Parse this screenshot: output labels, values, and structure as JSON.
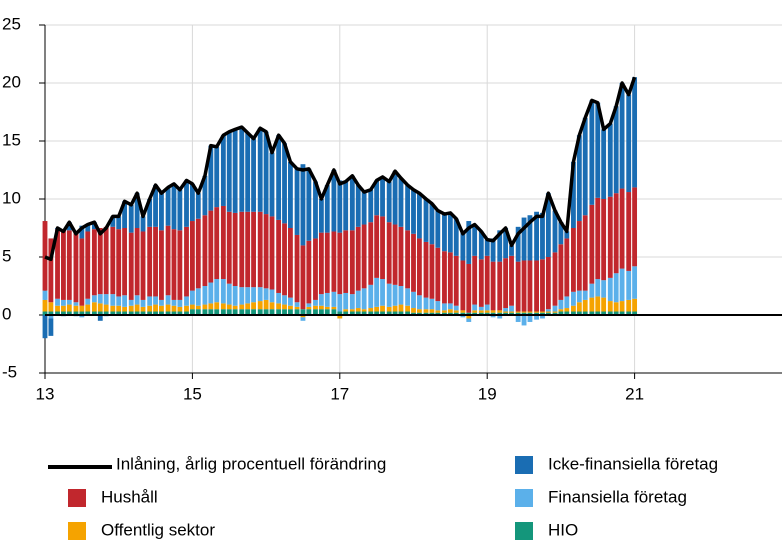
{
  "chart_data": {
    "type": "bar",
    "stacked": true,
    "x": [
      13.0,
      13.08,
      13.17,
      13.25,
      13.33,
      13.42,
      13.5,
      13.58,
      13.67,
      13.75,
      13.83,
      13.92,
      14.0,
      14.08,
      14.17,
      14.25,
      14.33,
      14.42,
      14.5,
      14.58,
      14.67,
      14.75,
      14.83,
      14.92,
      15.0,
      15.08,
      15.17,
      15.25,
      15.33,
      15.42,
      15.5,
      15.58,
      15.67,
      15.75,
      15.83,
      15.92,
      16.0,
      16.08,
      16.17,
      16.25,
      16.33,
      16.42,
      16.5,
      16.58,
      16.67,
      16.75,
      16.83,
      16.92,
      17.0,
      17.08,
      17.17,
      17.25,
      17.33,
      17.42,
      17.5,
      17.58,
      17.67,
      17.75,
      17.83,
      17.92,
      18.0,
      18.08,
      18.17,
      18.25,
      18.33,
      18.42,
      18.5,
      18.58,
      18.67,
      18.75,
      18.83,
      18.92,
      19.0,
      19.08,
      19.17,
      19.25,
      19.33,
      19.42,
      19.5,
      19.58,
      19.67,
      19.75,
      19.83,
      19.92,
      20.0,
      20.08,
      20.17,
      20.25,
      20.33,
      20.42,
      20.5,
      20.58,
      20.67,
      20.75,
      20.83,
      20.92,
      21.0
    ],
    "series": [
      {
        "name": "Inlåning, årlig procentuell förändring",
        "type": "line",
        "color": "#000000",
        "values": [
          5.0,
          4.8,
          7.5,
          7.2,
          8.0,
          7.0,
          7.5,
          7.8,
          8.0,
          7.0,
          7.5,
          8.5,
          8.5,
          9.8,
          9.5,
          10.5,
          8.5,
          10.0,
          11.2,
          10.5,
          11.0,
          11.3,
          10.8,
          11.6,
          11.3,
          10.5,
          12.0,
          14.6,
          14.5,
          15.5,
          15.8,
          16.0,
          16.2,
          15.7,
          15.2,
          16.1,
          15.8,
          14.0,
          15.5,
          14.8,
          13.2,
          12.6,
          12.5,
          12.6,
          11.5,
          10.0,
          11.2,
          12.5,
          11.3,
          11.5,
          12.0,
          11.2,
          10.6,
          10.8,
          11.6,
          11.9,
          11.5,
          12.4,
          11.8,
          11.2,
          10.8,
          10.5,
          10.0,
          9.6,
          9.0,
          8.7,
          8.8,
          8.3,
          7.0,
          7.5,
          7.8,
          7.2,
          6.5,
          6.4,
          7.0,
          7.5,
          6.0,
          7.0,
          7.5,
          8.0,
          8.5,
          8.5,
          10.5,
          9.0,
          8.0,
          7.2,
          13.2,
          15.5,
          17.0,
          18.5,
          18.3,
          16.0,
          16.5,
          18.0,
          20.0,
          19.0,
          20.5
        ]
      },
      {
        "name": "Icke-finansiella företag",
        "type": "bar",
        "color": "#1a6db3",
        "values": [
          -2.0,
          -1.5,
          0.1,
          -0.1,
          0.7,
          -0.1,
          1.1,
          0.6,
          0.6,
          -0.5,
          -0.1,
          0.9,
          1.1,
          2.3,
          2.4,
          3.0,
          1.3,
          2.4,
          3.6,
          3.2,
          3.3,
          3.9,
          3.5,
          4.0,
          3.2,
          2.2,
          3.4,
          5.6,
          5.2,
          6.1,
          6.9,
          7.2,
          7.3,
          6.8,
          6.3,
          7.2,
          7.1,
          5.5,
          7.3,
          6.9,
          5.7,
          5.7,
          7.0,
          6.2,
          4.9,
          2.9,
          4.1,
          5.3,
          4.5,
          4.2,
          4.7,
          3.6,
          2.8,
          2.8,
          3.0,
          3.4,
          3.5,
          4.6,
          4.2,
          3.9,
          3.8,
          3.9,
          3.7,
          3.5,
          3.2,
          3.2,
          3.4,
          3.2,
          2.5,
          3.7,
          2.7,
          2.4,
          1.4,
          2.0,
          2.7,
          2.6,
          0.9,
          3.0,
          3.7,
          3.9,
          4.2,
          4.0,
          5.5,
          3.6,
          1.9,
          0.6,
          5.7,
          7.4,
          8.4,
          9.0,
          8.2,
          6.0,
          6.3,
          7.5,
          9.1,
          8.4,
          9.5
        ]
      },
      {
        "name": "Hushåll",
        "type": "bar",
        "color": "#c1272d",
        "values": [
          6.0,
          5.5,
          6.0,
          6.0,
          6.0,
          6.0,
          5.8,
          5.8,
          5.7,
          5.7,
          5.8,
          5.8,
          5.8,
          5.8,
          5.8,
          5.8,
          5.9,
          6.0,
          6.0,
          6.0,
          6.0,
          6.1,
          6.0,
          6.0,
          6.0,
          6.0,
          6.1,
          6.2,
          6.2,
          6.3,
          6.2,
          6.3,
          6.5,
          6.5,
          6.5,
          6.5,
          6.4,
          6.3,
          6.3,
          6.2,
          6.0,
          5.8,
          5.5,
          5.4,
          5.3,
          5.3,
          5.2,
          5.2,
          5.3,
          5.4,
          5.5,
          5.5,
          5.5,
          5.4,
          5.4,
          5.4,
          5.3,
          5.2,
          5.1,
          5.0,
          5.0,
          4.9,
          4.8,
          4.7,
          4.6,
          4.5,
          4.4,
          4.3,
          4.3,
          4.2,
          4.2,
          4.1,
          4.2,
          4.2,
          4.2,
          4.3,
          4.3,
          4.3,
          4.4,
          4.4,
          4.4,
          4.5,
          4.5,
          4.6,
          4.8,
          5.0,
          5.5,
          6.0,
          6.5,
          6.8,
          7.0,
          7.0,
          7.0,
          6.9,
          6.9,
          6.8,
          6.8
        ]
      },
      {
        "name": "Finansiella företag",
        "type": "bar",
        "color": "#5bb0ea",
        "values": [
          0.8,
          -0.3,
          0.6,
          0.5,
          0.4,
          0.3,
          -0.2,
          0.5,
          0.6,
          0.8,
          0.9,
          1.0,
          0.8,
          1.0,
          0.5,
          0.8,
          0.6,
          0.8,
          0.7,
          0.5,
          0.8,
          0.5,
          0.6,
          0.8,
          1.2,
          1.5,
          1.6,
          1.8,
          2.0,
          2.1,
          1.8,
          1.7,
          1.5,
          1.4,
          1.3,
          1.2,
          1.0,
          1.1,
          0.9,
          0.8,
          0.7,
          0.4,
          -0.3,
          0.3,
          0.5,
          1.0,
          1.2,
          1.3,
          1.5,
          1.4,
          1.3,
          1.5,
          1.8,
          2.0,
          2.5,
          2.3,
          2.0,
          1.8,
          1.6,
          1.5,
          1.4,
          1.2,
          1.0,
          0.9,
          0.8,
          0.6,
          0.5,
          0.4,
          -0.2,
          -0.3,
          0.5,
          0.3,
          0.5,
          -0.2,
          -0.3,
          0.3,
          0.5,
          -0.6,
          -0.9,
          -0.6,
          -0.4,
          -0.3,
          0.2,
          0.5,
          0.8,
          1.0,
          1.2,
          1.0,
          0.8,
          1.2,
          1.5,
          1.5,
          2.0,
          2.5,
          2.8,
          2.5,
          2.8
        ]
      },
      {
        "name": "Offentlig sektor",
        "type": "bar",
        "color": "#f5a300",
        "values": [
          1.0,
          0.8,
          0.5,
          0.5,
          0.6,
          0.5,
          0.5,
          0.6,
          0.8,
          0.7,
          0.6,
          0.5,
          0.5,
          0.4,
          0.5,
          0.6,
          0.4,
          0.5,
          0.6,
          0.5,
          0.6,
          0.5,
          0.4,
          0.5,
          0.4,
          0.3,
          0.4,
          0.5,
          0.6,
          0.5,
          0.4,
          0.3,
          0.4,
          0.5,
          0.6,
          0.7,
          0.8,
          0.6,
          0.5,
          0.4,
          0.3,
          0.2,
          -0.2,
          0.2,
          0.3,
          0.3,
          0.2,
          0.2,
          -0.3,
          0.2,
          0.2,
          0.3,
          0.2,
          0.3,
          0.4,
          0.5,
          0.4,
          0.5,
          0.6,
          0.5,
          0.4,
          0.3,
          0.3,
          0.3,
          0.2,
          0.2,
          0.3,
          0.2,
          0.2,
          -0.3,
          0.2,
          0.2,
          0.2,
          0.2,
          0.2,
          0.1,
          0.1,
          0.1,
          0.1,
          0.1,
          0.1,
          0.1,
          0.1,
          0.1,
          0.2,
          0.3,
          0.5,
          0.8,
          1.0,
          1.2,
          1.3,
          1.2,
          0.9,
          0.8,
          0.9,
          1.0,
          1.1
        ]
      },
      {
        "name": "HIO",
        "type": "bar",
        "color": "#14967b",
        "values": [
          0.3,
          0.3,
          0.3,
          0.3,
          0.3,
          0.3,
          0.3,
          0.3,
          0.3,
          0.3,
          0.3,
          0.3,
          0.3,
          0.3,
          0.3,
          0.3,
          0.3,
          0.3,
          0.3,
          0.3,
          0.3,
          0.3,
          0.3,
          0.3,
          0.5,
          0.5,
          0.5,
          0.5,
          0.5,
          0.5,
          0.5,
          0.5,
          0.5,
          0.5,
          0.5,
          0.5,
          0.5,
          0.5,
          0.5,
          0.5,
          0.5,
          0.5,
          0.5,
          0.5,
          0.5,
          0.5,
          0.5,
          0.5,
          0.3,
          0.3,
          0.3,
          0.3,
          0.3,
          0.3,
          0.3,
          0.3,
          0.3,
          0.3,
          0.3,
          0.3,
          0.2,
          0.2,
          0.2,
          0.2,
          0.2,
          0.2,
          0.2,
          0.2,
          0.2,
          0.2,
          0.2,
          0.2,
          0.2,
          0.2,
          0.2,
          0.2,
          0.2,
          0.2,
          0.2,
          0.2,
          0.2,
          0.2,
          0.2,
          0.2,
          0.3,
          0.3,
          0.3,
          0.3,
          0.3,
          0.3,
          0.3,
          0.3,
          0.3,
          0.3,
          0.3,
          0.3,
          0.3
        ]
      }
    ],
    "xlim": [
      13,
      23
    ],
    "xticks": [
      13,
      15,
      17,
      19,
      21
    ],
    "ylim": [
      -5,
      25
    ],
    "yticks": [
      -5,
      0,
      5,
      10,
      15,
      20,
      25
    ],
    "grid": true,
    "legend": "bottom"
  }
}
